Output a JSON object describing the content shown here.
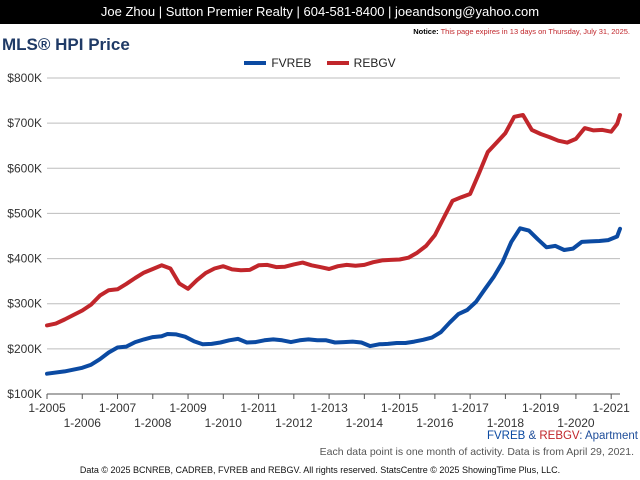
{
  "header": {
    "contact": "Joe Zhou | Sutton Premier Realty | 604-581-8400 | joeandsong@yahoo.com"
  },
  "notice": {
    "label": "Notice:",
    "text": "This page expires in 13 days on Thursday, July 31, 2025."
  },
  "title": "MLS® HPI Price",
  "series_caption": {
    "fvreb": "FVREB",
    "amp": " & ",
    "rebgv": "REBGV",
    "rest": ": Apartment"
  },
  "note": "Each data point is one month of activity. Data is from April 29, 2021.",
  "copyright": "Data © 2025 BCNREB, CADREB, FVREB and REBGV. All rights reserved. StatsCentre © 2025 ShowingTime Plus, LLC.",
  "colors": {
    "fvreb": "#0b4aa2",
    "rebgv": "#c1262b",
    "grid": "#bdbdbd"
  },
  "chart_data": {
    "type": "line",
    "ylim": [
      100000,
      800000
    ],
    "y_ticks": [
      100000,
      200000,
      300000,
      400000,
      500000,
      600000,
      700000,
      800000
    ],
    "y_tick_labels": [
      "$100K",
      "$200K",
      "$300K",
      "$400K",
      "$500K",
      "$600K",
      "$700K",
      "$800K"
    ],
    "xlim": [
      "2005-01",
      "2021-04"
    ],
    "x_ticks_upper": [
      "1-2005",
      "1-2007",
      "1-2009",
      "1-2011",
      "1-2013",
      "1-2015",
      "1-2017",
      "1-2019",
      "1-2021"
    ],
    "x_ticks_lower": [
      "1-2006",
      "1-2008",
      "1-2010",
      "1-2012",
      "1-2014",
      "1-2016",
      "1-2018",
      "1-2020"
    ],
    "legend": "top-center",
    "grid": true,
    "series": [
      {
        "name": "FVREB",
        "points": [
          [
            "2005-01",
            145000
          ],
          [
            "2005-07",
            150000
          ],
          [
            "2006-01",
            158000
          ],
          [
            "2006-04",
            165000
          ],
          [
            "2006-07",
            177000
          ],
          [
            "2006-10",
            192000
          ],
          [
            "2007-01",
            203000
          ],
          [
            "2007-04",
            205000
          ],
          [
            "2007-07",
            215000
          ],
          [
            "2007-10",
            221000
          ],
          [
            "2008-01",
            226000
          ],
          [
            "2008-04",
            228000
          ],
          [
            "2008-06",
            233000
          ],
          [
            "2008-09",
            232000
          ],
          [
            "2008-12",
            227000
          ],
          [
            "2009-03",
            217000
          ],
          [
            "2009-06",
            210000
          ],
          [
            "2009-09",
            211000
          ],
          [
            "2009-12",
            214000
          ],
          [
            "2010-03",
            219000
          ],
          [
            "2010-06",
            222000
          ],
          [
            "2010-09",
            214000
          ],
          [
            "2010-12",
            215000
          ],
          [
            "2011-03",
            219000
          ],
          [
            "2011-06",
            221000
          ],
          [
            "2011-09",
            219000
          ],
          [
            "2011-12",
            215000
          ],
          [
            "2012-03",
            219000
          ],
          [
            "2012-06",
            221000
          ],
          [
            "2012-09",
            219000
          ],
          [
            "2012-12",
            219000
          ],
          [
            "2013-03",
            214000
          ],
          [
            "2013-06",
            215000
          ],
          [
            "2013-09",
            216000
          ],
          [
            "2013-12",
            214000
          ],
          [
            "2014-03",
            206000
          ],
          [
            "2014-06",
            210000
          ],
          [
            "2014-09",
            211000
          ],
          [
            "2014-12",
            213000
          ],
          [
            "2015-03",
            213000
          ],
          [
            "2015-06",
            216000
          ],
          [
            "2015-09",
            220000
          ],
          [
            "2015-12",
            225000
          ],
          [
            "2016-03",
            237000
          ],
          [
            "2016-06",
            258000
          ],
          [
            "2016-09",
            277000
          ],
          [
            "2016-12",
            286000
          ],
          [
            "2017-03",
            304000
          ],
          [
            "2017-06",
            332000
          ],
          [
            "2017-09",
            359000
          ],
          [
            "2017-12",
            392000
          ],
          [
            "2018-03",
            437000
          ],
          [
            "2018-06",
            467000
          ],
          [
            "2018-09",
            462000
          ],
          [
            "2018-12",
            443000
          ],
          [
            "2019-03",
            425000
          ],
          [
            "2019-06",
            428000
          ],
          [
            "2019-09",
            419000
          ],
          [
            "2019-12",
            422000
          ],
          [
            "2020-03",
            437000
          ],
          [
            "2020-06",
            438000
          ],
          [
            "2020-09",
            439000
          ],
          [
            "2020-12",
            441000
          ],
          [
            "2021-03",
            449000
          ],
          [
            "2021-04",
            466000
          ]
        ]
      },
      {
        "name": "REBGV",
        "points": [
          [
            "2005-01",
            252000
          ],
          [
            "2005-04",
            256000
          ],
          [
            "2005-07",
            265000
          ],
          [
            "2005-10",
            275000
          ],
          [
            "2006-01",
            285000
          ],
          [
            "2006-04",
            298000
          ],
          [
            "2006-07",
            318000
          ],
          [
            "2006-10",
            330000
          ],
          [
            "2007-01",
            332000
          ],
          [
            "2007-04",
            344000
          ],
          [
            "2007-07",
            357000
          ],
          [
            "2007-10",
            369000
          ],
          [
            "2008-01",
            377000
          ],
          [
            "2008-04",
            385000
          ],
          [
            "2008-07",
            378000
          ],
          [
            "2008-10",
            345000
          ],
          [
            "2009-01",
            333000
          ],
          [
            "2009-04",
            352000
          ],
          [
            "2009-07",
            368000
          ],
          [
            "2009-10",
            378000
          ],
          [
            "2010-01",
            383000
          ],
          [
            "2010-04",
            376000
          ],
          [
            "2010-07",
            374000
          ],
          [
            "2010-10",
            375000
          ],
          [
            "2011-01",
            385000
          ],
          [
            "2011-04",
            386000
          ],
          [
            "2011-07",
            381000
          ],
          [
            "2011-10",
            382000
          ],
          [
            "2012-01",
            387000
          ],
          [
            "2012-04",
            391000
          ],
          [
            "2012-07",
            385000
          ],
          [
            "2012-10",
            381000
          ],
          [
            "2013-01",
            377000
          ],
          [
            "2013-04",
            383000
          ],
          [
            "2013-07",
            386000
          ],
          [
            "2013-10",
            384000
          ],
          [
            "2014-01",
            386000
          ],
          [
            "2014-04",
            392000
          ],
          [
            "2014-07",
            396000
          ],
          [
            "2014-10",
            397000
          ],
          [
            "2015-01",
            398000
          ],
          [
            "2015-04",
            402000
          ],
          [
            "2015-07",
            413000
          ],
          [
            "2015-10",
            428000
          ],
          [
            "2016-01",
            452000
          ],
          [
            "2016-04",
            490000
          ],
          [
            "2016-07",
            528000
          ],
          [
            "2016-10",
            536000
          ],
          [
            "2017-01",
            543000
          ],
          [
            "2017-04",
            589000
          ],
          [
            "2017-07",
            636000
          ],
          [
            "2017-10",
            657000
          ],
          [
            "2018-01",
            678000
          ],
          [
            "2018-04",
            714000
          ],
          [
            "2018-07",
            718000
          ],
          [
            "2018-10",
            685000
          ],
          [
            "2019-01",
            676000
          ],
          [
            "2019-04",
            669000
          ],
          [
            "2019-07",
            661000
          ],
          [
            "2019-10",
            657000
          ],
          [
            "2020-01",
            665000
          ],
          [
            "2020-04",
            689000
          ],
          [
            "2020-07",
            684000
          ],
          [
            "2020-10",
            685000
          ],
          [
            "2021-01",
            681000
          ],
          [
            "2021-03",
            698000
          ],
          [
            "2021-04",
            718000
          ]
        ]
      }
    ]
  }
}
